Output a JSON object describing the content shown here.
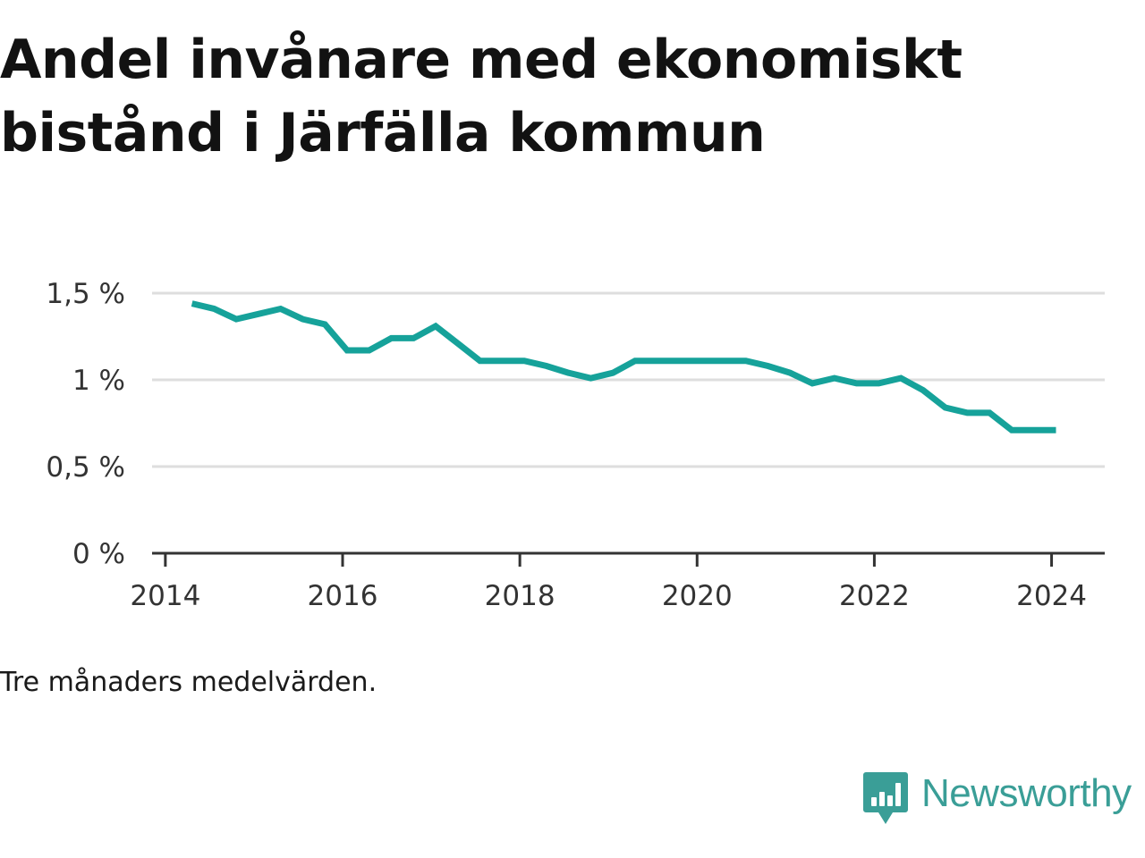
{
  "chart_data": {
    "type": "line",
    "title": "Andel invånare med ekonomiskt bistånd i Järfälla kommun",
    "note": "Tre månaders medelvärden.",
    "xlabel": "",
    "ylabel": "",
    "x_ticks": [
      "2014",
      "2016",
      "2018",
      "2020",
      "2022",
      "2024"
    ],
    "x_tick_values": [
      2014,
      2016,
      2018,
      2020,
      2022,
      2024
    ],
    "y_ticks": [
      "0 %",
      "0,5 %",
      "1 %",
      "1,5 %"
    ],
    "y_tick_values": [
      0,
      0.5,
      1,
      1.5
    ],
    "xlim": [
      2013.85,
      2024.6
    ],
    "ylim": [
      0,
      1.5
    ],
    "grid": "horizontal",
    "legend": "none",
    "line_color": "#16a29a",
    "series": [
      {
        "x": [
          2014.3,
          2014.55,
          2014.8,
          2015.05,
          2015.3,
          2015.55,
          2015.8,
          2016.05,
          2016.3,
          2016.55,
          2016.8,
          2017.05,
          2017.3,
          2017.55,
          2017.8,
          2018.05,
          2018.3,
          2018.55,
          2018.8,
          2019.05,
          2019.3,
          2019.55,
          2019.8,
          2020.05,
          2020.3,
          2020.55,
          2020.8,
          2021.05,
          2021.3,
          2021.55,
          2021.8,
          2022.05,
          2022.3,
          2022.55,
          2022.8,
          2023.05,
          2023.3,
          2023.55,
          2023.8,
          2024.05
        ],
        "values": [
          1.44,
          1.41,
          1.35,
          1.38,
          1.41,
          1.35,
          1.32,
          1.17,
          1.17,
          1.24,
          1.24,
          1.31,
          1.21,
          1.11,
          1.11,
          1.11,
          1.08,
          1.04,
          1.01,
          1.04,
          1.11,
          1.11,
          1.11,
          1.11,
          1.11,
          1.11,
          1.08,
          1.04,
          0.98,
          1.01,
          0.98,
          0.98,
          1.01,
          0.94,
          0.84,
          0.81,
          0.81,
          0.71,
          0.71,
          0.71
        ]
      }
    ]
  },
  "brand": {
    "name": "Newsworthy",
    "logo_icon": "bar-chart-speech-bubble-icon",
    "color": "#3a9e97"
  }
}
